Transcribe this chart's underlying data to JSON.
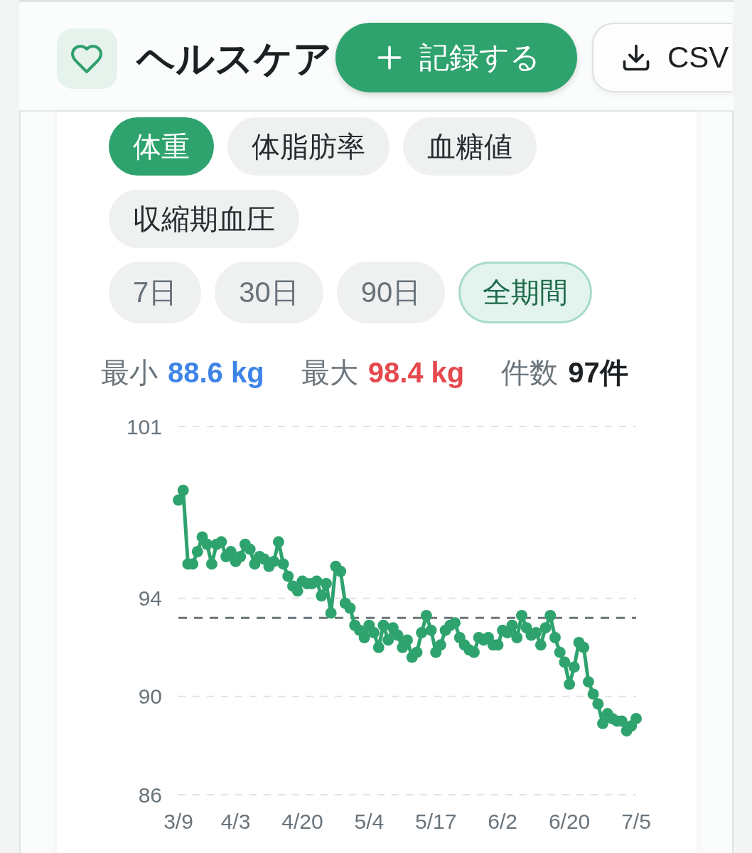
{
  "chart_data": {
    "type": "line",
    "title": "ヘルスケア",
    "categories": [
      "3/9",
      null,
      null,
      null,
      null,
      null,
      null,
      null,
      null,
      null,
      null,
      null,
      "4/3",
      null,
      null,
      null,
      null,
      null,
      null,
      null,
      null,
      null,
      null,
      null,
      null,
      null,
      "4/20",
      null,
      null,
      null,
      null,
      null,
      null,
      null,
      null,
      null,
      null,
      null,
      null,
      null,
      "5/4",
      null,
      null,
      null,
      null,
      null,
      null,
      null,
      null,
      null,
      null,
      null,
      null,
      null,
      "5/17",
      null,
      null,
      null,
      null,
      null,
      null,
      null,
      null,
      null,
      null,
      null,
      null,
      null,
      "6/2",
      null,
      null,
      null,
      null,
      null,
      null,
      null,
      null,
      null,
      null,
      null,
      null,
      null,
      "6/20",
      null,
      null,
      null,
      null,
      null,
      null,
      null,
      null,
      null,
      null,
      null,
      null,
      null,
      "7/5"
    ],
    "series": [
      {
        "color": "#2fa36e",
        "values": [
          98.0,
          98.4,
          95.4,
          95.4,
          95.9,
          96.5,
          96.2,
          95.4,
          96.2,
          96.3,
          95.7,
          95.9,
          95.5,
          95.7,
          96.2,
          96.0,
          95.4,
          95.7,
          95.6,
          95.3,
          95.5,
          96.3,
          95.4,
          94.9,
          94.5,
          94.3,
          94.7,
          94.6,
          94.6,
          94.7,
          94.1,
          94.6,
          93.4,
          95.3,
          95.1,
          93.8,
          93.6,
          92.9,
          92.7,
          92.4,
          92.9,
          92.6,
          92.0,
          92.9,
          92.3,
          92.8,
          92.5,
          92.0,
          92.3,
          91.6,
          91.8,
          92.6,
          93.3,
          92.7,
          91.8,
          92.1,
          92.7,
          92.9,
          93.0,
          92.4,
          92.1,
          91.9,
          91.8,
          92.4,
          92.3,
          92.4,
          92.1,
          92.1,
          92.7,
          92.6,
          92.9,
          92.4,
          93.3,
          92.8,
          92.5,
          92.6,
          92.1,
          92.8,
          93.3,
          92.4,
          91.8,
          91.4,
          90.5,
          91.2,
          92.2,
          92.0,
          90.6,
          90.1,
          89.7,
          88.9,
          89.3,
          89.1,
          89.0,
          89.0,
          88.6,
          88.8,
          89.1
        ]
      }
    ],
    "ylim": [
      86,
      101
    ],
    "yticks": [
      86,
      90,
      94,
      101
    ],
    "grid": "y",
    "marker": "circle",
    "line_style": "solid",
    "ref_lines": [
      {
        "axis": "y",
        "value": 93.2,
        "color": "#6b7478",
        "line_style": "dashed"
      }
    ],
    "annotations": [
      "記録する",
      "CSV",
      "体重",
      "体脂肪率",
      "血糖値",
      "収縮期血圧",
      "7日",
      "30日",
      "90日",
      "全期間",
      "最小",
      "88.6 kg",
      "最大",
      "98.4 kg",
      "件数",
      "97件"
    ]
  }
}
